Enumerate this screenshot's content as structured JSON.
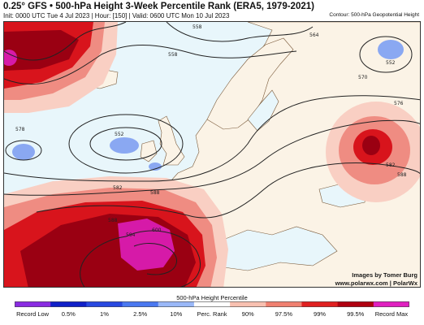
{
  "header": {
    "title": "0.25° GFS • 500-hPa Height 3-Week Percentile Rank (ERA5, 1979-2021)",
    "subtitle": "Init: 0000 UTC Tue 4 Jul 2023 | Hour: [150] | Valid: 0600 UTC Mon 10 Jul 2023",
    "contour_label": "Contour: 500-hPa Geopotential Height"
  },
  "credit": {
    "line1": "Images by Tomer Burg",
    "line2": "www.polarwx.com | PolarWx"
  },
  "contours": [
    "558",
    "564",
    "552",
    "570",
    "576",
    "558",
    "552",
    "578",
    "582",
    "588",
    "588",
    "594",
    "600",
    "582",
    "588"
  ],
  "legend": {
    "title": "500-hPa Height Percentile",
    "ticks": [
      "Record Low",
      "0.5%",
      "1%",
      "2.5%",
      "10%",
      "Perc. Rank",
      "90%",
      "97.5%",
      "99%",
      "99.5%",
      "Record Max"
    ],
    "colors": [
      "#8a2be2",
      "#1020c8",
      "#2848e0",
      "#4a78f0",
      "#9ab8f8",
      "#ffffff",
      "#f8c0b0",
      "#f08070",
      "#e02020",
      "#b00010",
      "#e020c0"
    ]
  },
  "colors": {
    "neutral_sea": "#e8f6fb",
    "land": "#fbf3e6",
    "light_high": "#f9cfc3",
    "mid_high": "#ef8c82",
    "strong_high": "#d8141c",
    "very_high": "#9a0012",
    "record_max": "#d61aa8",
    "low": "#8aa8f2"
  }
}
